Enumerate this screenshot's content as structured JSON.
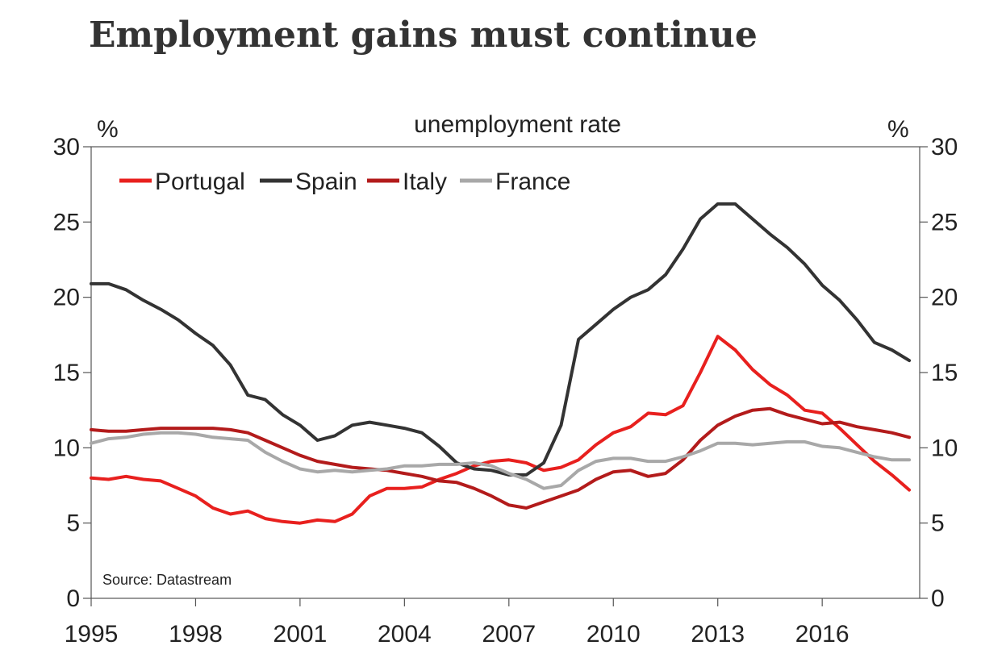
{
  "title": "Employment gains must continue",
  "chart_data": {
    "type": "line",
    "title": "Employment gains must continue",
    "subtitle": "unemployment rate",
    "left_unit": "%",
    "right_unit": "%",
    "source": "Source: Datastream",
    "ylim": [
      0,
      30
    ],
    "y_ticks": [
      0,
      5,
      10,
      15,
      20,
      25,
      30
    ],
    "xlim": [
      1995,
      2018.8
    ],
    "x_ticks": [
      1995,
      1998,
      2001,
      2004,
      2007,
      2010,
      2013,
      2016
    ],
    "legend_position": "top-left",
    "series": [
      {
        "name": "Portugal",
        "color": "#e8201e",
        "points": [
          [
            1995.0,
            8.0
          ],
          [
            1995.5,
            7.9
          ],
          [
            1996.0,
            8.1
          ],
          [
            1996.5,
            7.9
          ],
          [
            1997.0,
            7.8
          ],
          [
            1997.5,
            7.3
          ],
          [
            1998.0,
            6.8
          ],
          [
            1998.5,
            6.0
          ],
          [
            1999.0,
            5.6
          ],
          [
            1999.5,
            5.8
          ],
          [
            2000.0,
            5.3
          ],
          [
            2000.5,
            5.1
          ],
          [
            2001.0,
            5.0
          ],
          [
            2001.5,
            5.2
          ],
          [
            2002.0,
            5.1
          ],
          [
            2002.5,
            5.6
          ],
          [
            2003.0,
            6.8
          ],
          [
            2003.5,
            7.3
          ],
          [
            2004.0,
            7.3
          ],
          [
            2004.5,
            7.4
          ],
          [
            2005.0,
            7.9
          ],
          [
            2005.5,
            8.3
          ],
          [
            2006.0,
            8.8
          ],
          [
            2006.5,
            9.1
          ],
          [
            2007.0,
            9.2
          ],
          [
            2007.5,
            9.0
          ],
          [
            2008.0,
            8.5
          ],
          [
            2008.5,
            8.7
          ],
          [
            2009.0,
            9.2
          ],
          [
            2009.5,
            10.2
          ],
          [
            2010.0,
            11.0
          ],
          [
            2010.5,
            11.4
          ],
          [
            2011.0,
            12.3
          ],
          [
            2011.5,
            12.2
          ],
          [
            2012.0,
            12.8
          ],
          [
            2012.5,
            15.0
          ],
          [
            2013.0,
            17.4
          ],
          [
            2013.5,
            16.5
          ],
          [
            2014.0,
            15.2
          ],
          [
            2014.5,
            14.2
          ],
          [
            2015.0,
            13.5
          ],
          [
            2015.5,
            12.5
          ],
          [
            2016.0,
            12.3
          ],
          [
            2016.5,
            11.3
          ],
          [
            2017.0,
            10.2
          ],
          [
            2017.5,
            9.1
          ],
          [
            2018.0,
            8.2
          ],
          [
            2018.5,
            7.2
          ]
        ]
      },
      {
        "name": "Spain",
        "color": "#333333",
        "points": [
          [
            1995.0,
            20.9
          ],
          [
            1995.5,
            20.9
          ],
          [
            1996.0,
            20.5
          ],
          [
            1996.5,
            19.8
          ],
          [
            1997.0,
            19.2
          ],
          [
            1997.5,
            18.5
          ],
          [
            1998.0,
            17.6
          ],
          [
            1998.5,
            16.8
          ],
          [
            1999.0,
            15.5
          ],
          [
            1999.5,
            13.5
          ],
          [
            2000.0,
            13.2
          ],
          [
            2000.5,
            12.2
          ],
          [
            2001.0,
            11.5
          ],
          [
            2001.5,
            10.5
          ],
          [
            2002.0,
            10.8
          ],
          [
            2002.5,
            11.5
          ],
          [
            2003.0,
            11.7
          ],
          [
            2003.5,
            11.5
          ],
          [
            2004.0,
            11.3
          ],
          [
            2004.5,
            11.0
          ],
          [
            2005.0,
            10.1
          ],
          [
            2005.5,
            9.0
          ],
          [
            2006.0,
            8.6
          ],
          [
            2006.5,
            8.5
          ],
          [
            2007.0,
            8.2
          ],
          [
            2007.5,
            8.2
          ],
          [
            2008.0,
            9.0
          ],
          [
            2008.5,
            11.5
          ],
          [
            2009.0,
            17.2
          ],
          [
            2009.5,
            18.2
          ],
          [
            2010.0,
            19.2
          ],
          [
            2010.5,
            20.0
          ],
          [
            2011.0,
            20.5
          ],
          [
            2011.5,
            21.5
          ],
          [
            2012.0,
            23.2
          ],
          [
            2012.5,
            25.2
          ],
          [
            2013.0,
            26.2
          ],
          [
            2013.5,
            26.2
          ],
          [
            2014.0,
            25.2
          ],
          [
            2014.5,
            24.2
          ],
          [
            2015.0,
            23.3
          ],
          [
            2015.5,
            22.2
          ],
          [
            2016.0,
            20.8
          ],
          [
            2016.5,
            19.8
          ],
          [
            2017.0,
            18.5
          ],
          [
            2017.5,
            17.0
          ],
          [
            2018.0,
            16.5
          ],
          [
            2018.5,
            15.8
          ]
        ]
      },
      {
        "name": "Italy",
        "color": "#b31b1b",
        "points": [
          [
            1995.0,
            11.2
          ],
          [
            1995.5,
            11.1
          ],
          [
            1996.0,
            11.1
          ],
          [
            1996.5,
            11.2
          ],
          [
            1997.0,
            11.3
          ],
          [
            1997.5,
            11.3
          ],
          [
            1998.0,
            11.3
          ],
          [
            1998.5,
            11.3
          ],
          [
            1999.0,
            11.2
          ],
          [
            1999.5,
            11.0
          ],
          [
            2000.0,
            10.5
          ],
          [
            2000.5,
            10.0
          ],
          [
            2001.0,
            9.5
          ],
          [
            2001.5,
            9.1
          ],
          [
            2002.0,
            8.9
          ],
          [
            2002.5,
            8.7
          ],
          [
            2003.0,
            8.6
          ],
          [
            2003.5,
            8.5
          ],
          [
            2004.0,
            8.3
          ],
          [
            2004.5,
            8.1
          ],
          [
            2005.0,
            7.8
          ],
          [
            2005.5,
            7.7
          ],
          [
            2006.0,
            7.3
          ],
          [
            2006.5,
            6.8
          ],
          [
            2007.0,
            6.2
          ],
          [
            2007.5,
            6.0
          ],
          [
            2008.0,
            6.4
          ],
          [
            2008.5,
            6.8
          ],
          [
            2009.0,
            7.2
          ],
          [
            2009.5,
            7.9
          ],
          [
            2010.0,
            8.4
          ],
          [
            2010.5,
            8.5
          ],
          [
            2011.0,
            8.1
          ],
          [
            2011.5,
            8.3
          ],
          [
            2012.0,
            9.2
          ],
          [
            2012.5,
            10.5
          ],
          [
            2013.0,
            11.5
          ],
          [
            2013.5,
            12.1
          ],
          [
            2014.0,
            12.5
          ],
          [
            2014.5,
            12.6
          ],
          [
            2015.0,
            12.2
          ],
          [
            2015.5,
            11.9
          ],
          [
            2016.0,
            11.6
          ],
          [
            2016.5,
            11.7
          ],
          [
            2017.0,
            11.4
          ],
          [
            2017.5,
            11.2
          ],
          [
            2018.0,
            11.0
          ],
          [
            2018.5,
            10.7
          ]
        ]
      },
      {
        "name": "France",
        "color": "#a8a8a8",
        "points": [
          [
            1995.0,
            10.3
          ],
          [
            1995.5,
            10.6
          ],
          [
            1996.0,
            10.7
          ],
          [
            1996.5,
            10.9
          ],
          [
            1997.0,
            11.0
          ],
          [
            1997.5,
            11.0
          ],
          [
            1998.0,
            10.9
          ],
          [
            1998.5,
            10.7
          ],
          [
            1999.0,
            10.6
          ],
          [
            1999.5,
            10.5
          ],
          [
            2000.0,
            9.7
          ],
          [
            2000.5,
            9.1
          ],
          [
            2001.0,
            8.6
          ],
          [
            2001.5,
            8.4
          ],
          [
            2002.0,
            8.5
          ],
          [
            2002.5,
            8.4
          ],
          [
            2003.0,
            8.5
          ],
          [
            2003.5,
            8.6
          ],
          [
            2004.0,
            8.8
          ],
          [
            2004.5,
            8.8
          ],
          [
            2005.0,
            8.9
          ],
          [
            2005.5,
            8.9
          ],
          [
            2006.0,
            9.0
          ],
          [
            2006.5,
            8.8
          ],
          [
            2007.0,
            8.3
          ],
          [
            2007.5,
            7.9
          ],
          [
            2008.0,
            7.3
          ],
          [
            2008.5,
            7.5
          ],
          [
            2009.0,
            8.5
          ],
          [
            2009.5,
            9.1
          ],
          [
            2010.0,
            9.3
          ],
          [
            2010.5,
            9.3
          ],
          [
            2011.0,
            9.1
          ],
          [
            2011.5,
            9.1
          ],
          [
            2012.0,
            9.4
          ],
          [
            2012.5,
            9.8
          ],
          [
            2013.0,
            10.3
          ],
          [
            2013.5,
            10.3
          ],
          [
            2014.0,
            10.2
          ],
          [
            2014.5,
            10.3
          ],
          [
            2015.0,
            10.4
          ],
          [
            2015.5,
            10.4
          ],
          [
            2016.0,
            10.1
          ],
          [
            2016.5,
            10.0
          ],
          [
            2017.0,
            9.7
          ],
          [
            2017.5,
            9.4
          ],
          [
            2018.0,
            9.2
          ],
          [
            2018.5,
            9.2
          ]
        ]
      }
    ]
  }
}
